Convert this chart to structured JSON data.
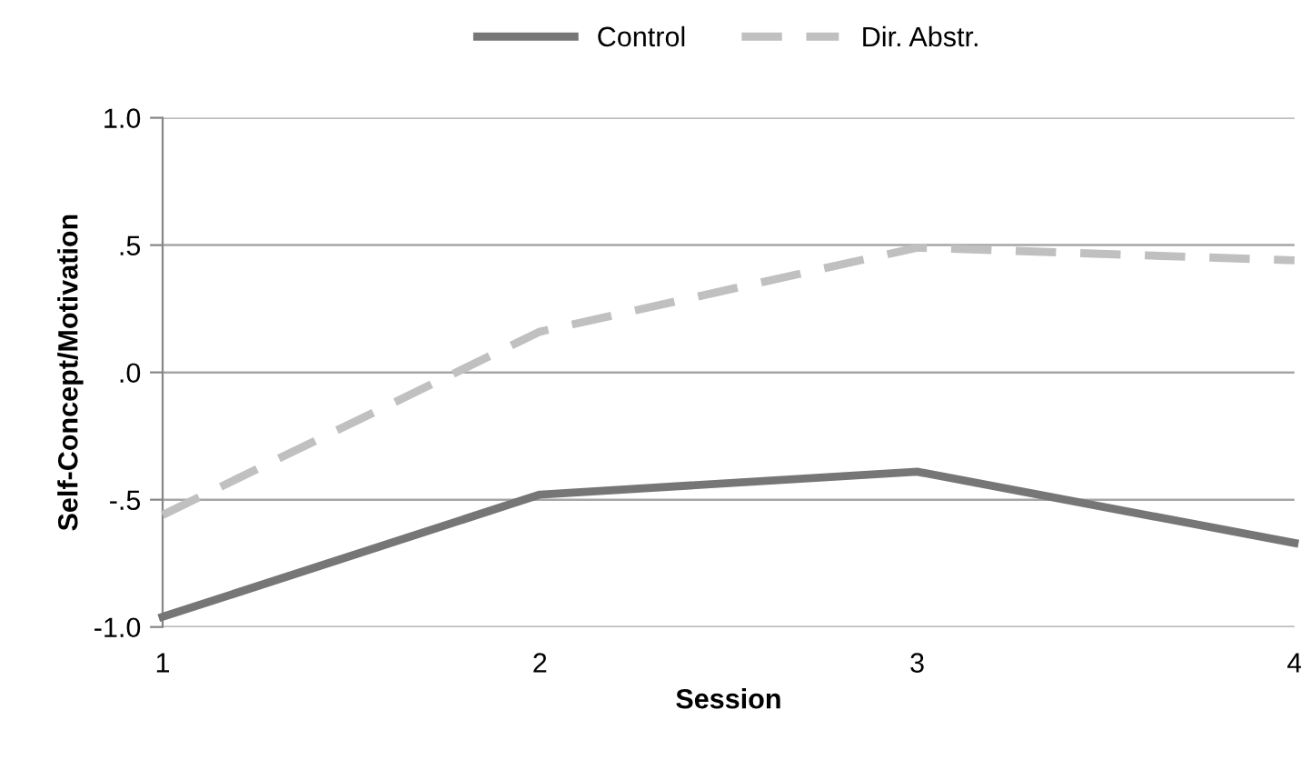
{
  "chart_data": {
    "type": "line",
    "xlabel": "Session",
    "ylabel": "Self-Concept/Motivation",
    "x": [
      1,
      2,
      3,
      4
    ],
    "xlim": [
      1,
      4
    ],
    "xticks": [
      1,
      2,
      3,
      4
    ],
    "ylim": [
      -1.0,
      1.0
    ],
    "yticks": [
      {
        "value": -1.0,
        "label": "-1.0"
      },
      {
        "value": -0.5,
        "label": "-.5"
      },
      {
        "value": 0.0,
        "label": ".0"
      },
      {
        "value": 0.5,
        "label": ".5"
      },
      {
        "value": 1.0,
        "label": "1.0"
      }
    ],
    "grid": "y",
    "legend": "top",
    "marker": "none",
    "series": [
      {
        "name": "Control",
        "color": "#767676",
        "line_style": "solid",
        "values": [
          -0.96,
          -0.48,
          -0.39,
          -0.67
        ]
      },
      {
        "name": "Dir. Abstr.",
        "color": "#c0c0c0",
        "line_style": "dashed",
        "values": [
          -0.56,
          0.16,
          0.49,
          0.44
        ]
      }
    ]
  }
}
